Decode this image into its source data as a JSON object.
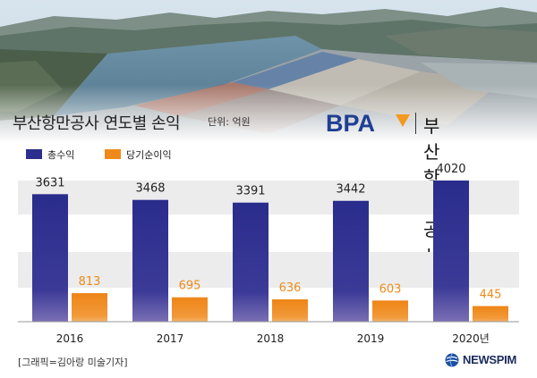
{
  "header": {
    "title": "부산항만공사 연도별 손익",
    "unit_note": "단위: 억원",
    "brand_logo": "BPA",
    "brand_name": "부산항만공사"
  },
  "legend": [
    {
      "label": "총수익",
      "color": "#2d2f8e"
    },
    {
      "label": "당기순이익",
      "color": "#ef8a1a"
    }
  ],
  "chart_data": {
    "type": "bar",
    "categories": [
      "2016",
      "2017",
      "2018",
      "2019",
      "2020년"
    ],
    "series": [
      {
        "name": "총수익",
        "values": [
          3631,
          3468,
          3391,
          3442,
          4020
        ],
        "color": "#2d2f8e"
      },
      {
        "name": "당기순이익",
        "values": [
          813,
          695,
          636,
          603,
          445
        ],
        "color": "#ef8a1a"
      }
    ],
    "title": "부산항만공사 연도별 손익",
    "xlabel": "",
    "ylabel": "",
    "unit": "단위: 억원",
    "grid": true,
    "legend_position": "top-left"
  },
  "footer": {
    "credit": "[그래픽=김아랑 미술기자]",
    "source_logo": "NEWSPIM"
  },
  "colors": {
    "total_revenue": "#2d2f8e",
    "net_income": "#ef8a1a",
    "grid_band": "#ececec",
    "brand_blue": "#1f3f93",
    "brand_orange": "#f39a1e"
  }
}
